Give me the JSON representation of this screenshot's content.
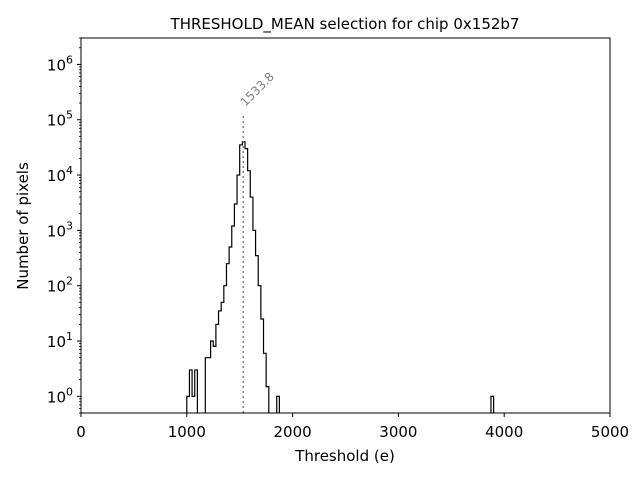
{
  "chart_data": {
    "type": "histogram",
    "title": "THRESHOLD_MEAN selection for chip 0x152b7",
    "xlabel": "Threshold (e)",
    "ylabel": "Number of pixels",
    "xlim": [
      0,
      5000
    ],
    "ylim": [
      0.5,
      3000000
    ],
    "yscale": "log",
    "grid": false,
    "line_color": "#000000",
    "x_ticks": [
      {
        "value": 0,
        "label": "0"
      },
      {
        "value": 1000,
        "label": "1000"
      },
      {
        "value": 2000,
        "label": "2000"
      },
      {
        "value": 3000,
        "label": "3000"
      },
      {
        "value": 4000,
        "label": "4000"
      },
      {
        "value": 5000,
        "label": "5000"
      }
    ],
    "y_ticks": [
      {
        "value": 1,
        "base": "10",
        "exp": "0"
      },
      {
        "value": 10,
        "base": "10",
        "exp": "1"
      },
      {
        "value": 100,
        "base": "10",
        "exp": "2"
      },
      {
        "value": 1000,
        "base": "10",
        "exp": "3"
      },
      {
        "value": 10000,
        "base": "10",
        "exp": "4"
      },
      {
        "value": 100000,
        "base": "10",
        "exp": "5"
      },
      {
        "value": 1000000,
        "base": "10",
        "exp": "6"
      }
    ],
    "bins": [
      {
        "x0": 1000,
        "x1": 1025,
        "count": 1
      },
      {
        "x0": 1025,
        "x1": 1050,
        "count": 3
      },
      {
        "x0": 1050,
        "x1": 1075,
        "count": 1
      },
      {
        "x0": 1075,
        "x1": 1100,
        "count": 3
      },
      {
        "x0": 1100,
        "x1": 1175,
        "count": 0
      },
      {
        "x0": 1175,
        "x1": 1200,
        "count": 5
      },
      {
        "x0": 1200,
        "x1": 1225,
        "count": 5
      },
      {
        "x0": 1225,
        "x1": 1250,
        "count": 10
      },
      {
        "x0": 1250,
        "x1": 1275,
        "count": 8
      },
      {
        "x0": 1275,
        "x1": 1300,
        "count": 20
      },
      {
        "x0": 1300,
        "x1": 1325,
        "count": 35
      },
      {
        "x0": 1325,
        "x1": 1350,
        "count": 50
      },
      {
        "x0": 1350,
        "x1": 1375,
        "count": 100
      },
      {
        "x0": 1375,
        "x1": 1400,
        "count": 250
      },
      {
        "x0": 1400,
        "x1": 1425,
        "count": 500
      },
      {
        "x0": 1425,
        "x1": 1450,
        "count": 1200
      },
      {
        "x0": 1450,
        "x1": 1475,
        "count": 3000
      },
      {
        "x0": 1475,
        "x1": 1500,
        "count": 10000
      },
      {
        "x0": 1500,
        "x1": 1525,
        "count": 35000
      },
      {
        "x0": 1525,
        "x1": 1550,
        "count": 40000
      },
      {
        "x0": 1550,
        "x1": 1575,
        "count": 30000
      },
      {
        "x0": 1575,
        "x1": 1600,
        "count": 12000
      },
      {
        "x0": 1600,
        "x1": 1625,
        "count": 4000
      },
      {
        "x0": 1625,
        "x1": 1650,
        "count": 1000
      },
      {
        "x0": 1650,
        "x1": 1675,
        "count": 350
      },
      {
        "x0": 1675,
        "x1": 1700,
        "count": 100
      },
      {
        "x0": 1700,
        "x1": 1725,
        "count": 25
      },
      {
        "x0": 1725,
        "x1": 1750,
        "count": 6
      },
      {
        "x0": 1750,
        "x1": 1775,
        "count": 1.5
      },
      {
        "x0": 1775,
        "x1": 1850,
        "count": 0
      },
      {
        "x0": 1850,
        "x1": 1875,
        "count": 1
      },
      {
        "x0": 1875,
        "x1": 3875,
        "count": 0
      },
      {
        "x0": 3875,
        "x1": 3900,
        "count": 1
      }
    ],
    "annotations": [
      {
        "type": "vline",
        "x": 1533.8,
        "label": "1533.8",
        "color": "#808080",
        "style": "dotted"
      }
    ]
  }
}
